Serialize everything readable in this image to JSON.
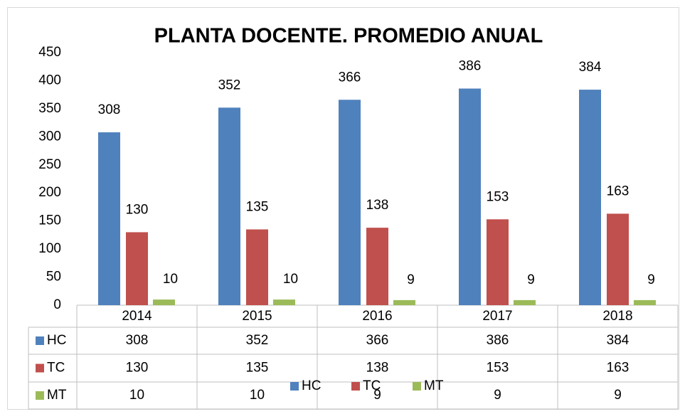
{
  "chart_data": {
    "type": "bar",
    "title": "PLANTA DOCENTE. PROMEDIO ANUAL",
    "categories": [
      "2014",
      "2015",
      "2016",
      "2017",
      "2018"
    ],
    "series": [
      {
        "name": "HC",
        "color": "#4f81bd",
        "values": [
          308,
          352,
          366,
          386,
          384
        ]
      },
      {
        "name": "TC",
        "color": "#c0504d",
        "values": [
          130,
          135,
          138,
          153,
          163
        ]
      },
      {
        "name": "MT",
        "color": "#9bbb59",
        "values": [
          10,
          10,
          9,
          9,
          9
        ]
      }
    ],
    "ylim": [
      0,
      450
    ],
    "yticks": [
      0,
      50,
      100,
      150,
      200,
      250,
      300,
      350,
      400,
      450
    ],
    "grid": false
  }
}
